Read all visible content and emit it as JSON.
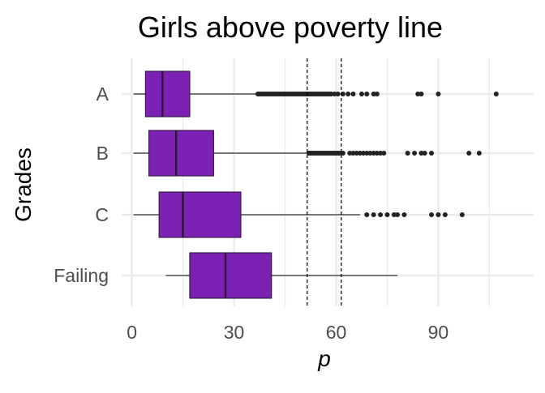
{
  "chart_data": {
    "type": "boxplot",
    "title": "Girls above poverty line",
    "xlabel": "p",
    "ylabel": "Grades",
    "xlim": [
      -3,
      118
    ],
    "x_ticks": [
      0,
      30,
      60,
      90
    ],
    "x_tick_labels": [
      "0",
      "30",
      "60",
      "90"
    ],
    "grid": true,
    "colors": {
      "box_fill": "#7B22B4",
      "box_stroke": "#3a1a4a",
      "grid": "#ebebeb",
      "outlier": "#222222"
    },
    "reference_lines": [
      51.5,
      61.5
    ],
    "categories": [
      "A",
      "B",
      "C",
      "Failing"
    ],
    "boxes": [
      {
        "category": "A",
        "whisker_low": 0.5,
        "q1": 4,
        "median": 9,
        "q3": 17,
        "whisker_high": 37,
        "outliers": [
          37,
          37.5,
          38,
          38.5,
          39,
          39.5,
          40,
          40.5,
          41,
          41.5,
          42,
          42.5,
          43,
          43.5,
          44,
          44.5,
          45,
          45.5,
          46,
          46.5,
          47,
          47.5,
          48,
          48.5,
          49,
          49.5,
          50,
          50.5,
          51,
          51.5,
          52,
          52.5,
          53,
          53.5,
          54,
          54.5,
          55,
          55.5,
          56,
          56.5,
          57,
          57.5,
          58,
          58.5,
          59.5,
          60.5,
          62,
          63.5,
          65,
          67.5,
          69,
          71,
          72,
          84,
          85,
          90,
          107
        ]
      },
      {
        "category": "B",
        "whisker_low": 0.5,
        "q1": 5,
        "median": 13,
        "q3": 24,
        "whisker_high": 52,
        "outliers": [
          52,
          52.5,
          53,
          53.5,
          54,
          54.5,
          55,
          55.5,
          56,
          56.5,
          57,
          57.5,
          58,
          58.5,
          59,
          59.5,
          60,
          60.5,
          61,
          62,
          64,
          65,
          66,
          67,
          68,
          69,
          70,
          71,
          72,
          73,
          74,
          81,
          83,
          85,
          86,
          88,
          99,
          102
        ]
      },
      {
        "category": "C",
        "whisker_low": 0.5,
        "q1": 8,
        "median": 15,
        "q3": 32,
        "whisker_high": 67,
        "outliers": [
          69,
          71,
          73,
          75,
          77,
          78,
          80,
          88,
          90,
          92,
          97
        ]
      },
      {
        "category": "Failing",
        "whisker_low": 10,
        "q1": 17,
        "median": 27.5,
        "q3": 41,
        "whisker_high": 78,
        "outliers": []
      }
    ]
  }
}
